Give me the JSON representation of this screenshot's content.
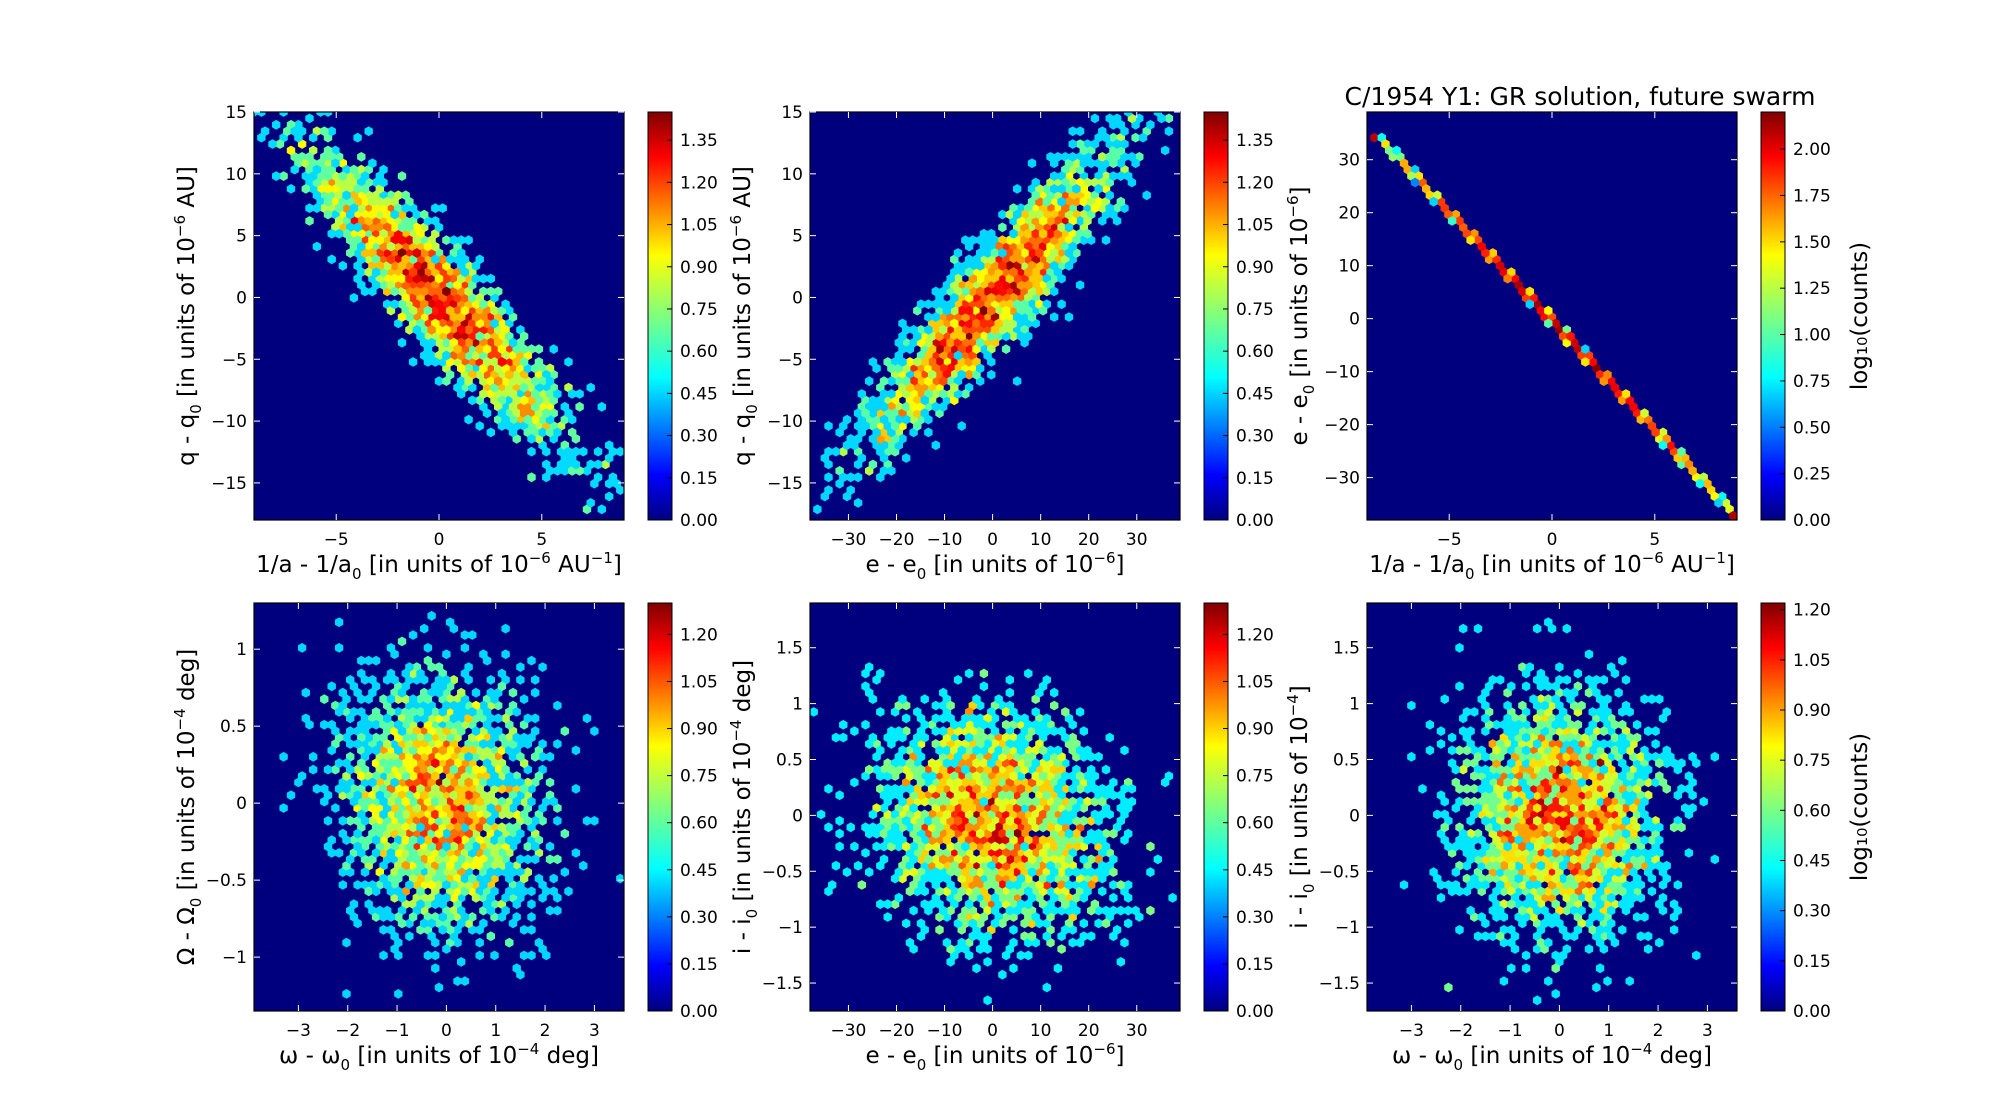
{
  "title": "C/1954 Y1:  GR solution, future swarm",
  "colormap": [
    "#00007f",
    "#0000ff",
    "#007fff",
    "#00ffff",
    "#7fff7f",
    "#ffff00",
    "#ff7f00",
    "#ff0000",
    "#7f0000"
  ],
  "background": "#00007f",
  "chart_data": [
    {
      "type": "heatmap",
      "xlabel": {
        "pre": "1/a - 1/a",
        "sub": "0",
        "mid": " [in units of 10",
        "sup": "−6",
        "post": " AU",
        "sup2": "−1",
        "end": "]"
      },
      "ylabel": {
        "pre": "q - q",
        "sub": "0",
        "mid": " [in units of 10",
        "sup": "−6",
        "post": " AU]"
      },
      "xlim": [
        -9.0,
        9.0
      ],
      "ylim": [
        -18.0,
        15.0
      ],
      "xticks": [
        -5,
        0,
        5
      ],
      "yticks": [
        -15,
        -10,
        -5,
        0,
        5,
        10,
        15
      ],
      "colorbar": {
        "ticks": [
          "0.00",
          "0.15",
          "0.30",
          "0.45",
          "0.60",
          "0.75",
          "0.90",
          "1.05",
          "1.20",
          "1.35"
        ],
        "max": 1.45,
        "label": null
      },
      "distribution": {
        "kind": "gaussian",
        "cx": 0,
        "cy": 0,
        "sx": 3.2,
        "sy": 6.0,
        "rho": -0.92,
        "n": 2400
      }
    },
    {
      "type": "heatmap",
      "xlabel": {
        "pre": "e - e",
        "sub": "0",
        "mid": " [in units of 10",
        "sup": "−6",
        "post": "]"
      },
      "ylabel": {
        "pre": "q - q",
        "sub": "0",
        "mid": " [in units of 10",
        "sup": "−6",
        "post": " AU]"
      },
      "xlim": [
        -38.0,
        39.0
      ],
      "ylim": [
        -18.0,
        15.0
      ],
      "xticks": [
        -30,
        -20,
        -10,
        0,
        10,
        20,
        30
      ],
      "yticks": [
        -15,
        -10,
        -5,
        0,
        5,
        10,
        15
      ],
      "colorbar": {
        "ticks": [
          "0.00",
          "0.15",
          "0.30",
          "0.45",
          "0.60",
          "0.75",
          "0.90",
          "1.05",
          "1.20",
          "1.35"
        ],
        "max": 1.45,
        "label": null
      },
      "distribution": {
        "kind": "gaussian",
        "cx": 0,
        "cy": 0,
        "sx": 13.0,
        "sy": 6.0,
        "rho": 0.92,
        "n": 2400
      }
    },
    {
      "type": "heatmap",
      "xlabel": {
        "pre": "1/a - 1/a",
        "sub": "0",
        "mid": " [in units of 10",
        "sup": "−6",
        "post": " AU",
        "sup2": "−1",
        "end": "]"
      },
      "ylabel": {
        "pre": "e - e",
        "sub": "0",
        "mid": " [in units of 10",
        "sup": "−6",
        "post": "]"
      },
      "xlim": [
        -9.0,
        9.0
      ],
      "ylim": [
        -38.0,
        39.0
      ],
      "xticks": [
        -5,
        0,
        5
      ],
      "yticks": [
        -30,
        -20,
        -10,
        0,
        10,
        20,
        30
      ],
      "colorbar": {
        "ticks": [
          "0.00",
          "0.25",
          "0.50",
          "0.75",
          "1.00",
          "1.25",
          "1.50",
          "1.75",
          "2.00"
        ],
        "max": 2.2,
        "label": "log₁₀(counts)"
      },
      "distribution": {
        "kind": "line",
        "x0": -8.5,
        "y0": 34.5,
        "x1": 8.9,
        "y1": -37.0,
        "n": 3000
      }
    },
    {
      "type": "heatmap",
      "xlabel": {
        "pre": "ω - ω",
        "sub": "0",
        "mid": " [in units of 10",
        "sup": "−4",
        "post": " deg]"
      },
      "ylabel": {
        "pre": "Ω - Ω",
        "sub": "0",
        "mid": " [in units of 10",
        "sup": "−4",
        "post": " deg]"
      },
      "xlim": [
        -3.9,
        3.6
      ],
      "ylim": [
        -1.35,
        1.3
      ],
      "xticks": [
        -3,
        -2,
        -1,
        0,
        1,
        2,
        3
      ],
      "yticks": [
        -1.0,
        -0.5,
        0.0,
        0.5,
        1.0
      ],
      "colorbar": {
        "ticks": [
          "0.00",
          "0.15",
          "0.30",
          "0.45",
          "0.60",
          "0.75",
          "0.90",
          "1.05",
          "1.20"
        ],
        "max": 1.3,
        "label": null
      },
      "distribution": {
        "kind": "gaussian",
        "cx": -0.1,
        "cy": 0.0,
        "sx": 1.0,
        "sy": 0.42,
        "rho": -0.1,
        "n": 2400
      }
    },
    {
      "type": "heatmap",
      "xlabel": {
        "pre": "e - e",
        "sub": "0",
        "mid": " [in units of 10",
        "sup": "−6",
        "post": "]"
      },
      "ylabel": {
        "pre": "i - i",
        "sub": "0",
        "mid": " [in units of 10",
        "sup": "−4",
        "post": " deg]"
      },
      "xlim": [
        -38.0,
        39.0
      ],
      "ylim": [
        -1.75,
        1.9
      ],
      "xticks": [
        -30,
        -20,
        -10,
        0,
        10,
        20,
        30
      ],
      "yticks": [
        -1.5,
        -1.0,
        -0.5,
        0.0,
        0.5,
        1.0,
        1.5
      ],
      "colorbar": {
        "ticks": [
          "0.00",
          "0.15",
          "0.30",
          "0.45",
          "0.60",
          "0.75",
          "0.90",
          "1.05",
          "1.20"
        ],
        "max": 1.3,
        "label": null
      },
      "distribution": {
        "kind": "gaussian",
        "cx": 0,
        "cy": -0.05,
        "sx": 12.0,
        "sy": 0.5,
        "rho": -0.15,
        "n": 2400
      }
    },
    {
      "type": "heatmap",
      "xlabel": {
        "pre": "ω - ω",
        "sub": "0",
        "mid": " [in units of 10",
        "sup": "−4",
        "post": " deg]"
      },
      "ylabel": {
        "pre": "i - i",
        "sub": "0",
        "mid": " [in units of 10",
        "sup": "−4",
        "post": "]"
      },
      "xlim": [
        -3.9,
        3.6
      ],
      "ylim": [
        -1.75,
        1.9
      ],
      "xticks": [
        -3,
        -2,
        -1,
        0,
        1,
        2,
        3
      ],
      "yticks": [
        -1.5,
        -1.0,
        -0.5,
        0.0,
        0.5,
        1.0,
        1.5
      ],
      "colorbar": {
        "ticks": [
          "0.00",
          "0.15",
          "0.30",
          "0.45",
          "0.60",
          "0.75",
          "0.90",
          "1.05",
          "1.20"
        ],
        "max": 1.22,
        "label": "log₁₀(counts)"
      },
      "distribution": {
        "kind": "gaussian",
        "cx": 0,
        "cy": 0.0,
        "sx": 1.0,
        "sy": 0.52,
        "rho": -0.05,
        "n": 2400
      }
    }
  ]
}
